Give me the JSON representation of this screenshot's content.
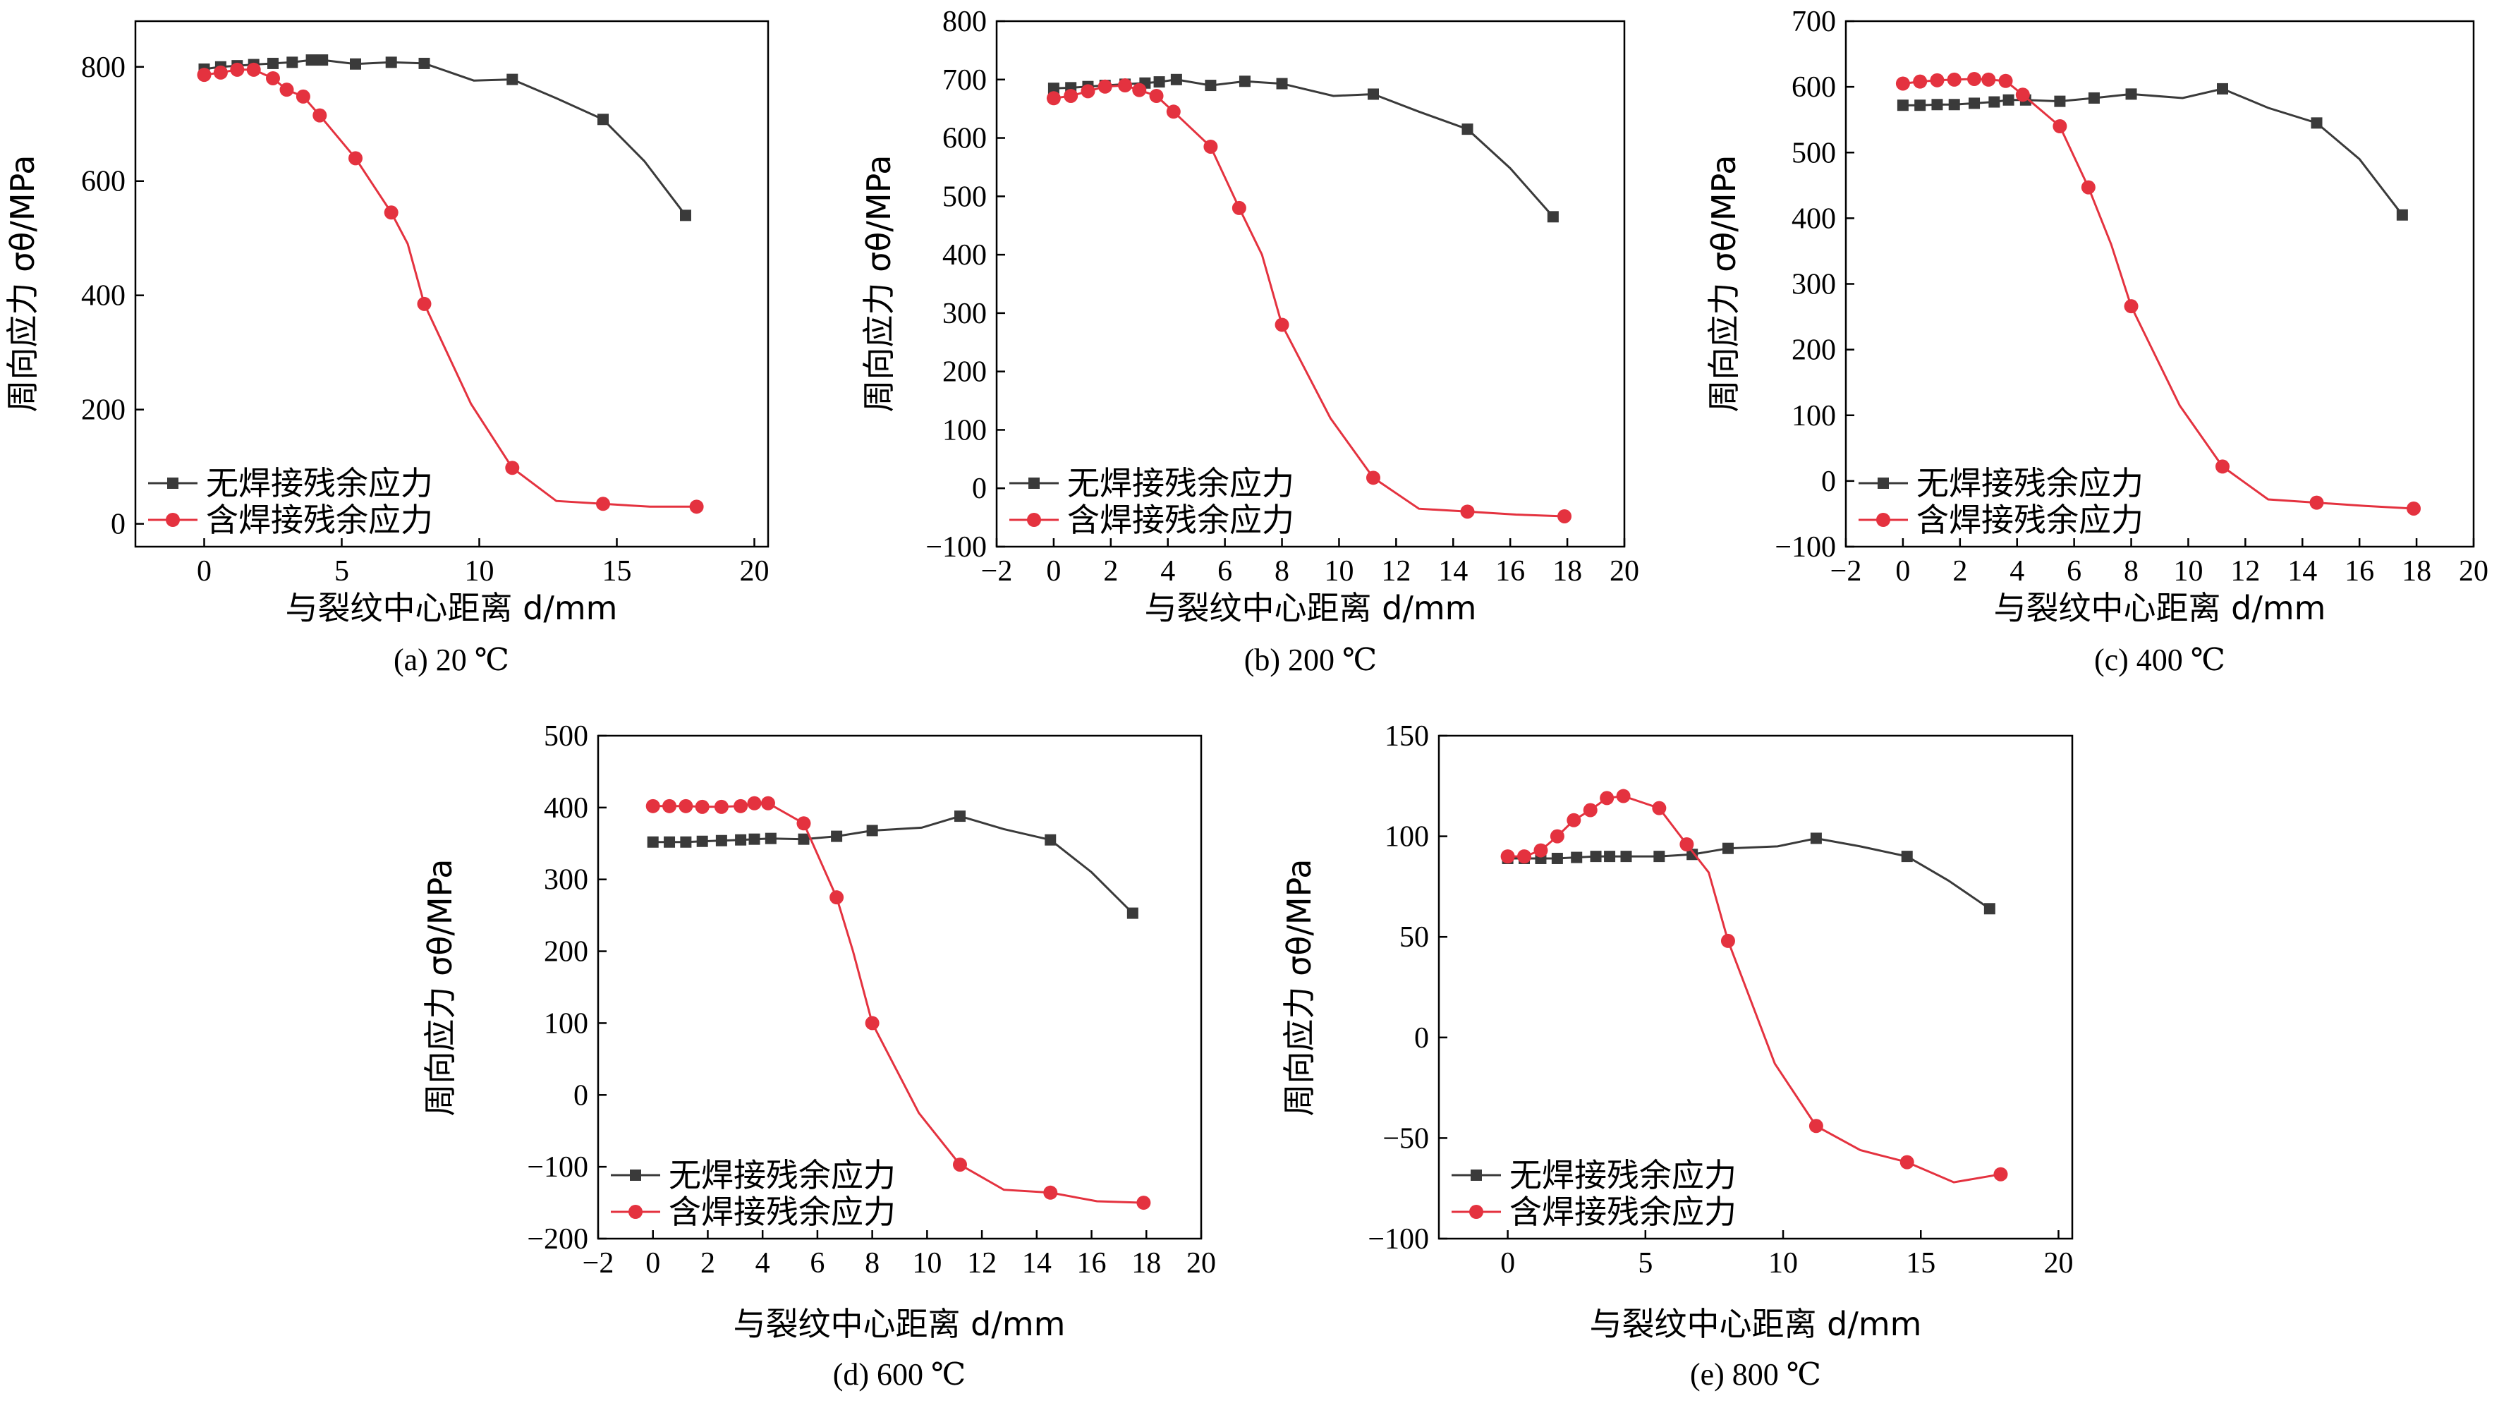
{
  "series_styles": [
    {
      "color": "#3a3a3a",
      "marker": "square"
    },
    {
      "color": "#e4323f",
      "marker": "circle"
    }
  ],
  "chart_data": [
    {
      "type": "line",
      "caption": "(a) 20 ℃",
      "xlabel": "与裂纹中心距离 d/mm",
      "ylabel": "周向应力 σθ/MPa",
      "xlim": [
        -2.5,
        20.5
      ],
      "ylim": [
        -40,
        880
      ],
      "xticks": [
        0,
        5,
        10,
        15,
        20
      ],
      "yticks": [
        0,
        200,
        400,
        600,
        800
      ],
      "legend": "bottom-left",
      "series": [
        {
          "name": "无焊接残余应力",
          "x": [
            0,
            0.6,
            1.2,
            1.8,
            2.5,
            3.2,
            3.9,
            4.3,
            5.5,
            6.8,
            8.0,
            9.8,
            11.2,
            12.8,
            14.5,
            16.0,
            17.5
          ],
          "y": [
            796,
            800,
            802,
            804,
            806,
            808,
            812,
            812,
            805,
            808,
            806,
            776,
            778,
            745,
            708,
            635,
            540
          ],
          "markers": [
            0,
            1,
            2,
            3,
            4,
            5,
            6,
            7,
            8,
            9,
            10,
            12,
            14,
            16
          ]
        },
        {
          "name": "含焊接残余应力",
          "x": [
            0,
            0.6,
            1.2,
            1.8,
            2.5,
            3.0,
            3.6,
            4.2,
            5.5,
            6.8,
            7.4,
            8.0,
            9.7,
            11.2,
            12.8,
            14.5,
            16.2,
            17.9
          ],
          "y": [
            786,
            790,
            795,
            795,
            780,
            760,
            748,
            715,
            640,
            545,
            490,
            385,
            210,
            98,
            40,
            35,
            30,
            30
          ],
          "markers": [
            0,
            1,
            2,
            3,
            4,
            5,
            6,
            7,
            8,
            9,
            11,
            13,
            15,
            17
          ]
        }
      ]
    },
    {
      "type": "line",
      "caption": "(b) 200 ℃",
      "xlabel": "与裂纹中心距离 d/mm",
      "ylabel": "周向应力 σθ/MPa",
      "xlim": [
        -2,
        20
      ],
      "ylim": [
        -100,
        800
      ],
      "xticks": [
        -2,
        0,
        2,
        4,
        6,
        8,
        10,
        12,
        14,
        16,
        18,
        20
      ],
      "yticks": [
        -100,
        0,
        100,
        200,
        300,
        400,
        500,
        600,
        700,
        800
      ],
      "legend": "bottom-left",
      "series": [
        {
          "name": "无焊接残余应力",
          "x": [
            0,
            0.6,
            1.2,
            1.8,
            2.5,
            3.2,
            3.7,
            4.3,
            5.5,
            6.7,
            8.0,
            9.8,
            11.2,
            12.8,
            14.5,
            16.0,
            17.5
          ],
          "y": [
            685,
            686,
            688,
            690,
            692,
            694,
            696,
            700,
            690,
            697,
            693,
            672,
            675,
            645,
            615,
            548,
            465
          ],
          "markers": [
            0,
            1,
            2,
            3,
            4,
            5,
            6,
            7,
            8,
            9,
            10,
            12,
            14,
            16
          ]
        },
        {
          "name": "含焊接残余应力",
          "x": [
            0,
            0.6,
            1.2,
            1.8,
            2.5,
            3.0,
            3.6,
            4.2,
            5.5,
            6.5,
            7.3,
            8.0,
            9.7,
            11.2,
            12.8,
            14.5,
            16.2,
            17.9
          ],
          "y": [
            668,
            672,
            680,
            688,
            690,
            682,
            672,
            645,
            585,
            480,
            400,
            280,
            120,
            18,
            -35,
            -40,
            -45,
            -48
          ],
          "markers": [
            0,
            1,
            2,
            3,
            4,
            5,
            6,
            7,
            8,
            9,
            11,
            13,
            15,
            17
          ]
        }
      ]
    },
    {
      "type": "line",
      "caption": "(c) 400 ℃",
      "xlabel": "与裂纹中心距离 d/mm",
      "ylabel": "周向应力 σθ/MPa",
      "xlim": [
        -2,
        20
      ],
      "ylim": [
        -100,
        700
      ],
      "xticks": [
        -2,
        0,
        2,
        4,
        6,
        8,
        10,
        12,
        14,
        16,
        18,
        20
      ],
      "yticks": [
        -100,
        0,
        100,
        200,
        300,
        400,
        500,
        600,
        700
      ],
      "legend": "bottom-left",
      "series": [
        {
          "name": "无焊接残余应力",
          "x": [
            0,
            0.6,
            1.2,
            1.8,
            2.5,
            3.2,
            3.7,
            4.3,
            5.5,
            6.7,
            8.0,
            9.8,
            11.2,
            12.8,
            14.5,
            16.0,
            17.5
          ],
          "y": [
            572,
            572,
            573,
            573,
            575,
            577,
            580,
            580,
            578,
            583,
            589,
            583,
            597,
            568,
            545,
            490,
            405
          ],
          "markers": [
            0,
            1,
            2,
            3,
            4,
            5,
            6,
            7,
            8,
            9,
            10,
            12,
            14,
            16
          ]
        },
        {
          "name": "含焊接残余应力",
          "x": [
            0,
            0.6,
            1.2,
            1.8,
            2.5,
            3.0,
            3.6,
            4.2,
            5.5,
            6.5,
            7.3,
            8.0,
            9.7,
            11.2,
            12.8,
            14.5,
            16.2,
            17.9
          ],
          "y": [
            605,
            608,
            610,
            611,
            612,
            611,
            609,
            588,
            540,
            447,
            360,
            266,
            115,
            22,
            -28,
            -33,
            -38,
            -42
          ],
          "markers": [
            0,
            1,
            2,
            3,
            4,
            5,
            6,
            7,
            8,
            9,
            11,
            13,
            15,
            17
          ]
        }
      ]
    },
    {
      "type": "line",
      "caption": "(d) 600 ℃",
      "xlabel": "与裂纹中心距离 d/mm",
      "ylabel": "周向应力 σθ/MPa",
      "xlim": [
        -2,
        20
      ],
      "ylim": [
        -200,
        500
      ],
      "xticks": [
        -2,
        0,
        2,
        4,
        6,
        8,
        10,
        12,
        14,
        16,
        18,
        20
      ],
      "yticks": [
        -200,
        -100,
        0,
        100,
        200,
        300,
        400,
        500
      ],
      "legend": "bottom-left",
      "series": [
        {
          "name": "无焊接残余应力",
          "x": [
            0,
            0.6,
            1.2,
            1.8,
            2.5,
            3.2,
            3.7,
            4.3,
            5.5,
            6.7,
            8.0,
            9.8,
            11.2,
            12.8,
            14.5,
            16.0,
            17.5
          ],
          "y": [
            352,
            352,
            352,
            353,
            354,
            355,
            356,
            357,
            356,
            360,
            368,
            372,
            388,
            370,
            355,
            310,
            253
          ],
          "markers": [
            0,
            1,
            2,
            3,
            4,
            5,
            6,
            7,
            8,
            9,
            10,
            12,
            14,
            16
          ]
        },
        {
          "name": "含焊接残余应力",
          "x": [
            0,
            0.6,
            1.2,
            1.8,
            2.5,
            3.2,
            3.7,
            4.2,
            5.5,
            6.7,
            7.3,
            8.0,
            9.7,
            11.2,
            12.8,
            14.5,
            16.2,
            17.9
          ],
          "y": [
            402,
            402,
            402,
            401,
            401,
            402,
            406,
            406,
            378,
            275,
            200,
            100,
            -25,
            -97,
            -132,
            -136,
            -148,
            -150
          ],
          "markers": [
            0,
            1,
            2,
            3,
            4,
            5,
            6,
            7,
            8,
            9,
            11,
            13,
            15,
            17
          ]
        }
      ]
    },
    {
      "type": "line",
      "caption": "(e) 800 ℃",
      "xlabel": "与裂纹中心距离 d/mm",
      "ylabel": "周向应力 σθ/MPa",
      "xlim": [
        -2.5,
        20.5
      ],
      "ylim": [
        -100,
        150
      ],
      "xticks": [
        0,
        5,
        10,
        15,
        20
      ],
      "yticks": [
        -100,
        -50,
        0,
        50,
        100,
        150
      ],
      "legend": "bottom-left",
      "series": [
        {
          "name": "无焊接残余应力",
          "x": [
            0,
            0.6,
            1.2,
            1.8,
            2.5,
            3.2,
            3.7,
            4.3,
            5.5,
            6.7,
            8.0,
            9.8,
            11.2,
            12.8,
            14.5,
            16.0,
            17.5
          ],
          "y": [
            89,
            89,
            89,
            89,
            89.5,
            90,
            90,
            90,
            90,
            91,
            94,
            95,
            99,
            95,
            90,
            78,
            64
          ],
          "markers": [
            0,
            1,
            2,
            3,
            4,
            5,
            6,
            7,
            8,
            9,
            10,
            12,
            14,
            16
          ]
        },
        {
          "name": "含焊接残余应力",
          "x": [
            0,
            0.6,
            1.2,
            1.8,
            2.4,
            3.0,
            3.6,
            4.2,
            5.5,
            6.5,
            7.3,
            8.0,
            9.7,
            11.2,
            12.8,
            14.5,
            16.2,
            17.9
          ],
          "y": [
            90,
            90,
            93,
            100,
            108,
            113,
            119,
            120,
            114,
            96,
            82,
            48,
            -13,
            -44,
            -56,
            -62,
            -72,
            -68
          ],
          "markers": [
            0,
            1,
            2,
            3,
            4,
            5,
            6,
            7,
            8,
            9,
            11,
            13,
            15,
            17
          ]
        }
      ]
    }
  ]
}
